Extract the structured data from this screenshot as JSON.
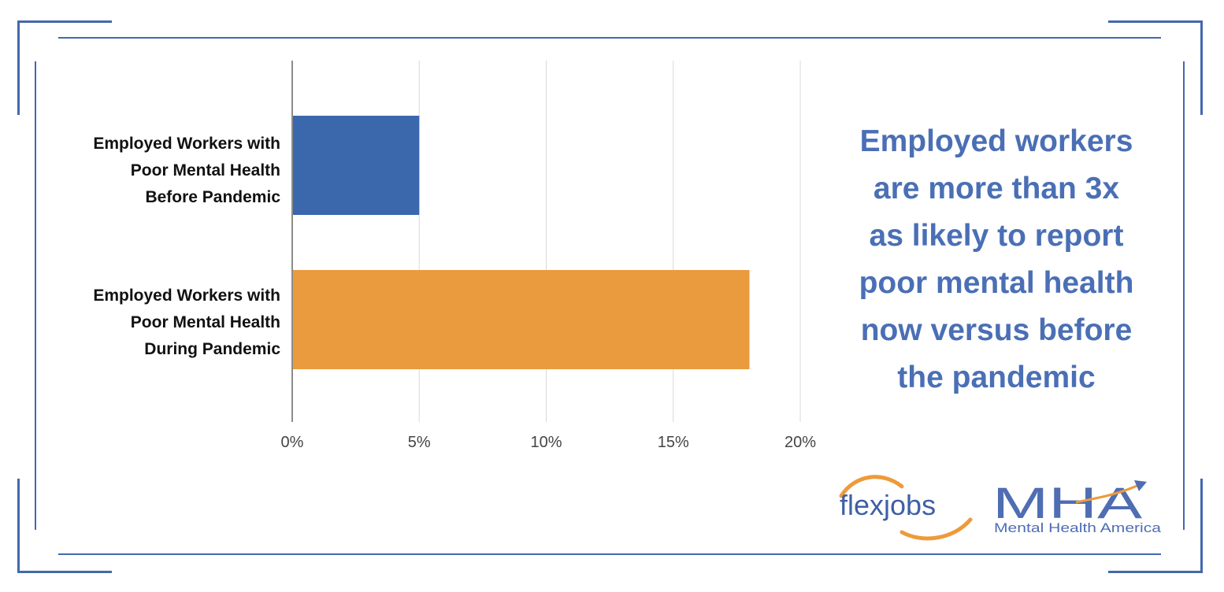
{
  "chart_data": {
    "type": "bar",
    "orientation": "horizontal",
    "categories": [
      "Employed Workers with\nPoor Mental Health\nBefore Pandemic",
      "Employed Workers with\nPoor Mental Health\nDuring Pandemic"
    ],
    "values": [
      5,
      18
    ],
    "bar_colors": [
      "#3b67ad",
      "#e99b3e"
    ],
    "xlim": [
      0,
      20
    ],
    "xticks": [
      0,
      5,
      10,
      15,
      20
    ],
    "xtick_labels": [
      "0%",
      "5%",
      "10%",
      "15%",
      "20%"
    ],
    "grid": true,
    "title": "",
    "xlabel": "",
    "ylabel": ""
  },
  "headline": "Employed workers\nare more than 3x\nas likely to report\npoor mental health\nnow versus before\nthe pandemic",
  "logos": {
    "flexjobs": "flexjobs",
    "mha": "MHA",
    "mha_subtitle": "Mental Health America"
  },
  "colors": {
    "frame": "#4468ae",
    "headline": "#4a6fb5",
    "flexjobs_blue": "#3f5fa6",
    "flexjobs_orange": "#ee9a3a",
    "mha_blue": "#4f6db3"
  }
}
